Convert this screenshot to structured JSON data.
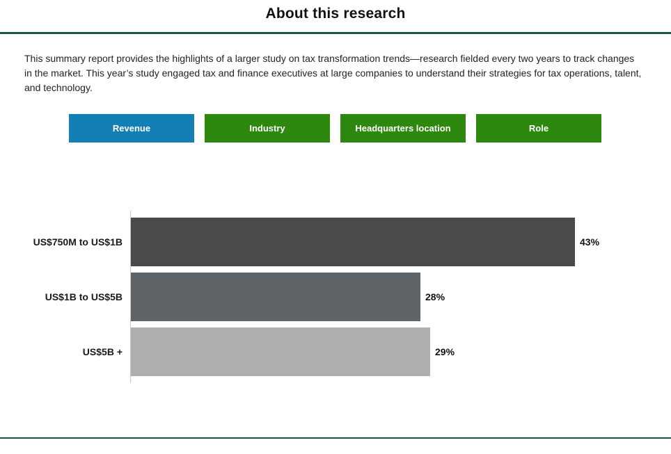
{
  "header": {
    "title": "About this research"
  },
  "intro": {
    "text": "This summary report provides the highlights of a larger study on tax transformation trends—research fielded every two years to track changes in the market. This year’s study engaged tax and finance executives at large companies to understand their strategies for tax operations, talent, and technology."
  },
  "filters": {
    "buttons": [
      {
        "label": "Revenue",
        "active": true
      },
      {
        "label": "Industry",
        "active": false
      },
      {
        "label": "Headquarters location",
        "active": false
      },
      {
        "label": "Role",
        "active": false
      }
    ]
  },
  "chart_data": {
    "type": "bar",
    "orientation": "horizontal",
    "title": "",
    "xlabel": "",
    "ylabel": "",
    "categories": [
      "US$750M to US$1B",
      "US$1B to US$5B",
      "US$5B +"
    ],
    "values": [
      43,
      28,
      29
    ],
    "value_labels": [
      "43%",
      "28%",
      "29%"
    ],
    "bar_colors": [
      "#4a4a4a",
      "#5f6469",
      "#aeaeb0"
    ],
    "xlim": [
      0,
      45
    ],
    "grid": false,
    "legend": false
  },
  "colors": {
    "divider_green": "#1b543a",
    "button_green": "#2e870f",
    "button_active_blue": "#1380b5",
    "axis_gray": "#c9c9c9"
  }
}
